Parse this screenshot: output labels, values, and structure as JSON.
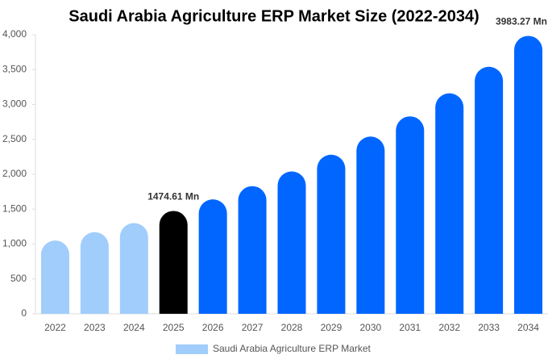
{
  "chart_data": {
    "type": "bar",
    "title": "Saudi Arabia Agriculture ERP Market Size (2022-2034)",
    "categories": [
      "2022",
      "2023",
      "2024",
      "2025",
      "2026",
      "2027",
      "2028",
      "2029",
      "2030",
      "2031",
      "2032",
      "2033",
      "2034"
    ],
    "series": [
      {
        "name": "Saudi Arabia Agriculture ERP Market",
        "color": "#a0cdfb",
        "colors": [
          "#a0cdfb",
          "#a0cdfb",
          "#a0cdfb",
          "#000000",
          "#0066ff",
          "#0066ff",
          "#0066ff",
          "#0066ff",
          "#0066ff",
          "#0066ff",
          "#0066ff",
          "#0066ff",
          "#0066ff"
        ],
        "values": [
          1050,
          1170,
          1300,
          1474.61,
          1640,
          1830,
          2040,
          2280,
          2540,
          2830,
          3160,
          3540,
          3983.27
        ],
        "value_labels": [
          null,
          null,
          null,
          "1474.61 Mn",
          null,
          null,
          null,
          null,
          null,
          null,
          null,
          null,
          "3983.27 Mn"
        ]
      }
    ],
    "ylim": [
      0,
      4000
    ],
    "yticks": [
      0,
      500,
      {
        "value": 1000,
        "label": "1,000"
      },
      {
        "value": 1500,
        "label": "1,500"
      },
      {
        "value": 2000,
        "label": "2,000"
      },
      {
        "value": 2500,
        "label": "2,500"
      },
      {
        "value": 3000,
        "label": "3,000"
      },
      {
        "value": 3500,
        "label": "3,500"
      },
      {
        "value": 4000,
        "label": "4,000"
      }
    ],
    "grid": false
  }
}
